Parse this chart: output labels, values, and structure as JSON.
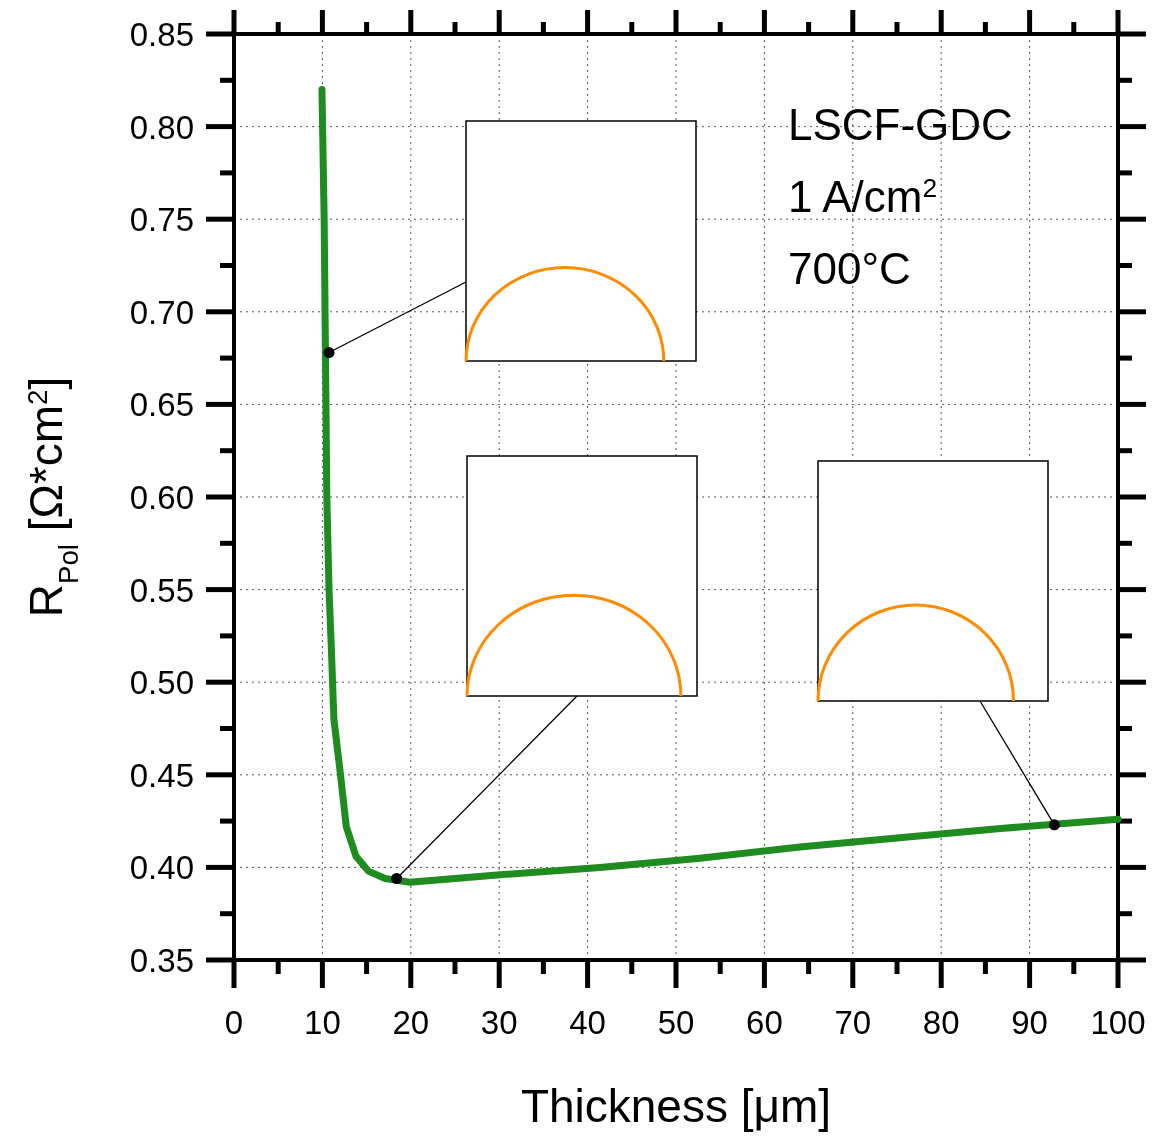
{
  "chart_data": {
    "type": "line",
    "xlabel": "Thickness [μm]",
    "ylabel": "R$_{Pol}$ [Ω*cm$^{2}$]",
    "annotations": [
      "LSCF-GDC",
      "1 A/cm$^{2}$",
      "700°C"
    ],
    "xlim": [
      0,
      100
    ],
    "xticks": [
      0,
      10,
      20,
      30,
      40,
      50,
      60,
      70,
      80,
      90,
      100
    ],
    "ylim": [
      0.35,
      0.85
    ],
    "yticks": [
      {
        "value": 0.35,
        "label": "0.35"
      },
      {
        "value": 0.4,
        "label": "0.40"
      },
      {
        "value": 0.45,
        "label": "0.45"
      },
      {
        "value": 0.5,
        "label": "0.50"
      },
      {
        "value": 0.55,
        "label": "0.55"
      },
      {
        "value": 0.6,
        "label": "0.60"
      },
      {
        "value": 0.65,
        "label": "0.65"
      },
      {
        "value": 0.7,
        "label": "0.70"
      },
      {
        "value": 0.75,
        "label": "0.75"
      },
      {
        "value": 0.8,
        "label": "0.80"
      },
      {
        "value": 0.85,
        "label": "0.85"
      }
    ],
    "grid": true,
    "series": [
      {
        "color": "#1e8c1e",
        "x": [
          9.95,
          10.2,
          10.5,
          10.75,
          11.0,
          11.3,
          12.0,
          12.7,
          13.8,
          15.2,
          17.1,
          19.9,
          30.1,
          41.4,
          52.7,
          64.0,
          75.3,
          86.7,
          100
        ],
        "values": [
          0.82,
          0.75,
          0.6,
          0.55,
          0.52,
          0.48,
          0.452,
          0.422,
          0.406,
          0.398,
          0.394,
          0.392,
          0.396,
          0.4,
          0.405,
          0.411,
          0.416,
          0.421,
          0.426
        ]
      },
      {
        "type": "scatter",
        "color": "#000000",
        "marker": "circle",
        "x": [
          10.75,
          18.4,
          92.8
        ],
        "values": [
          0.678,
          0.394,
          0.423
        ]
      }
    ]
  }
}
